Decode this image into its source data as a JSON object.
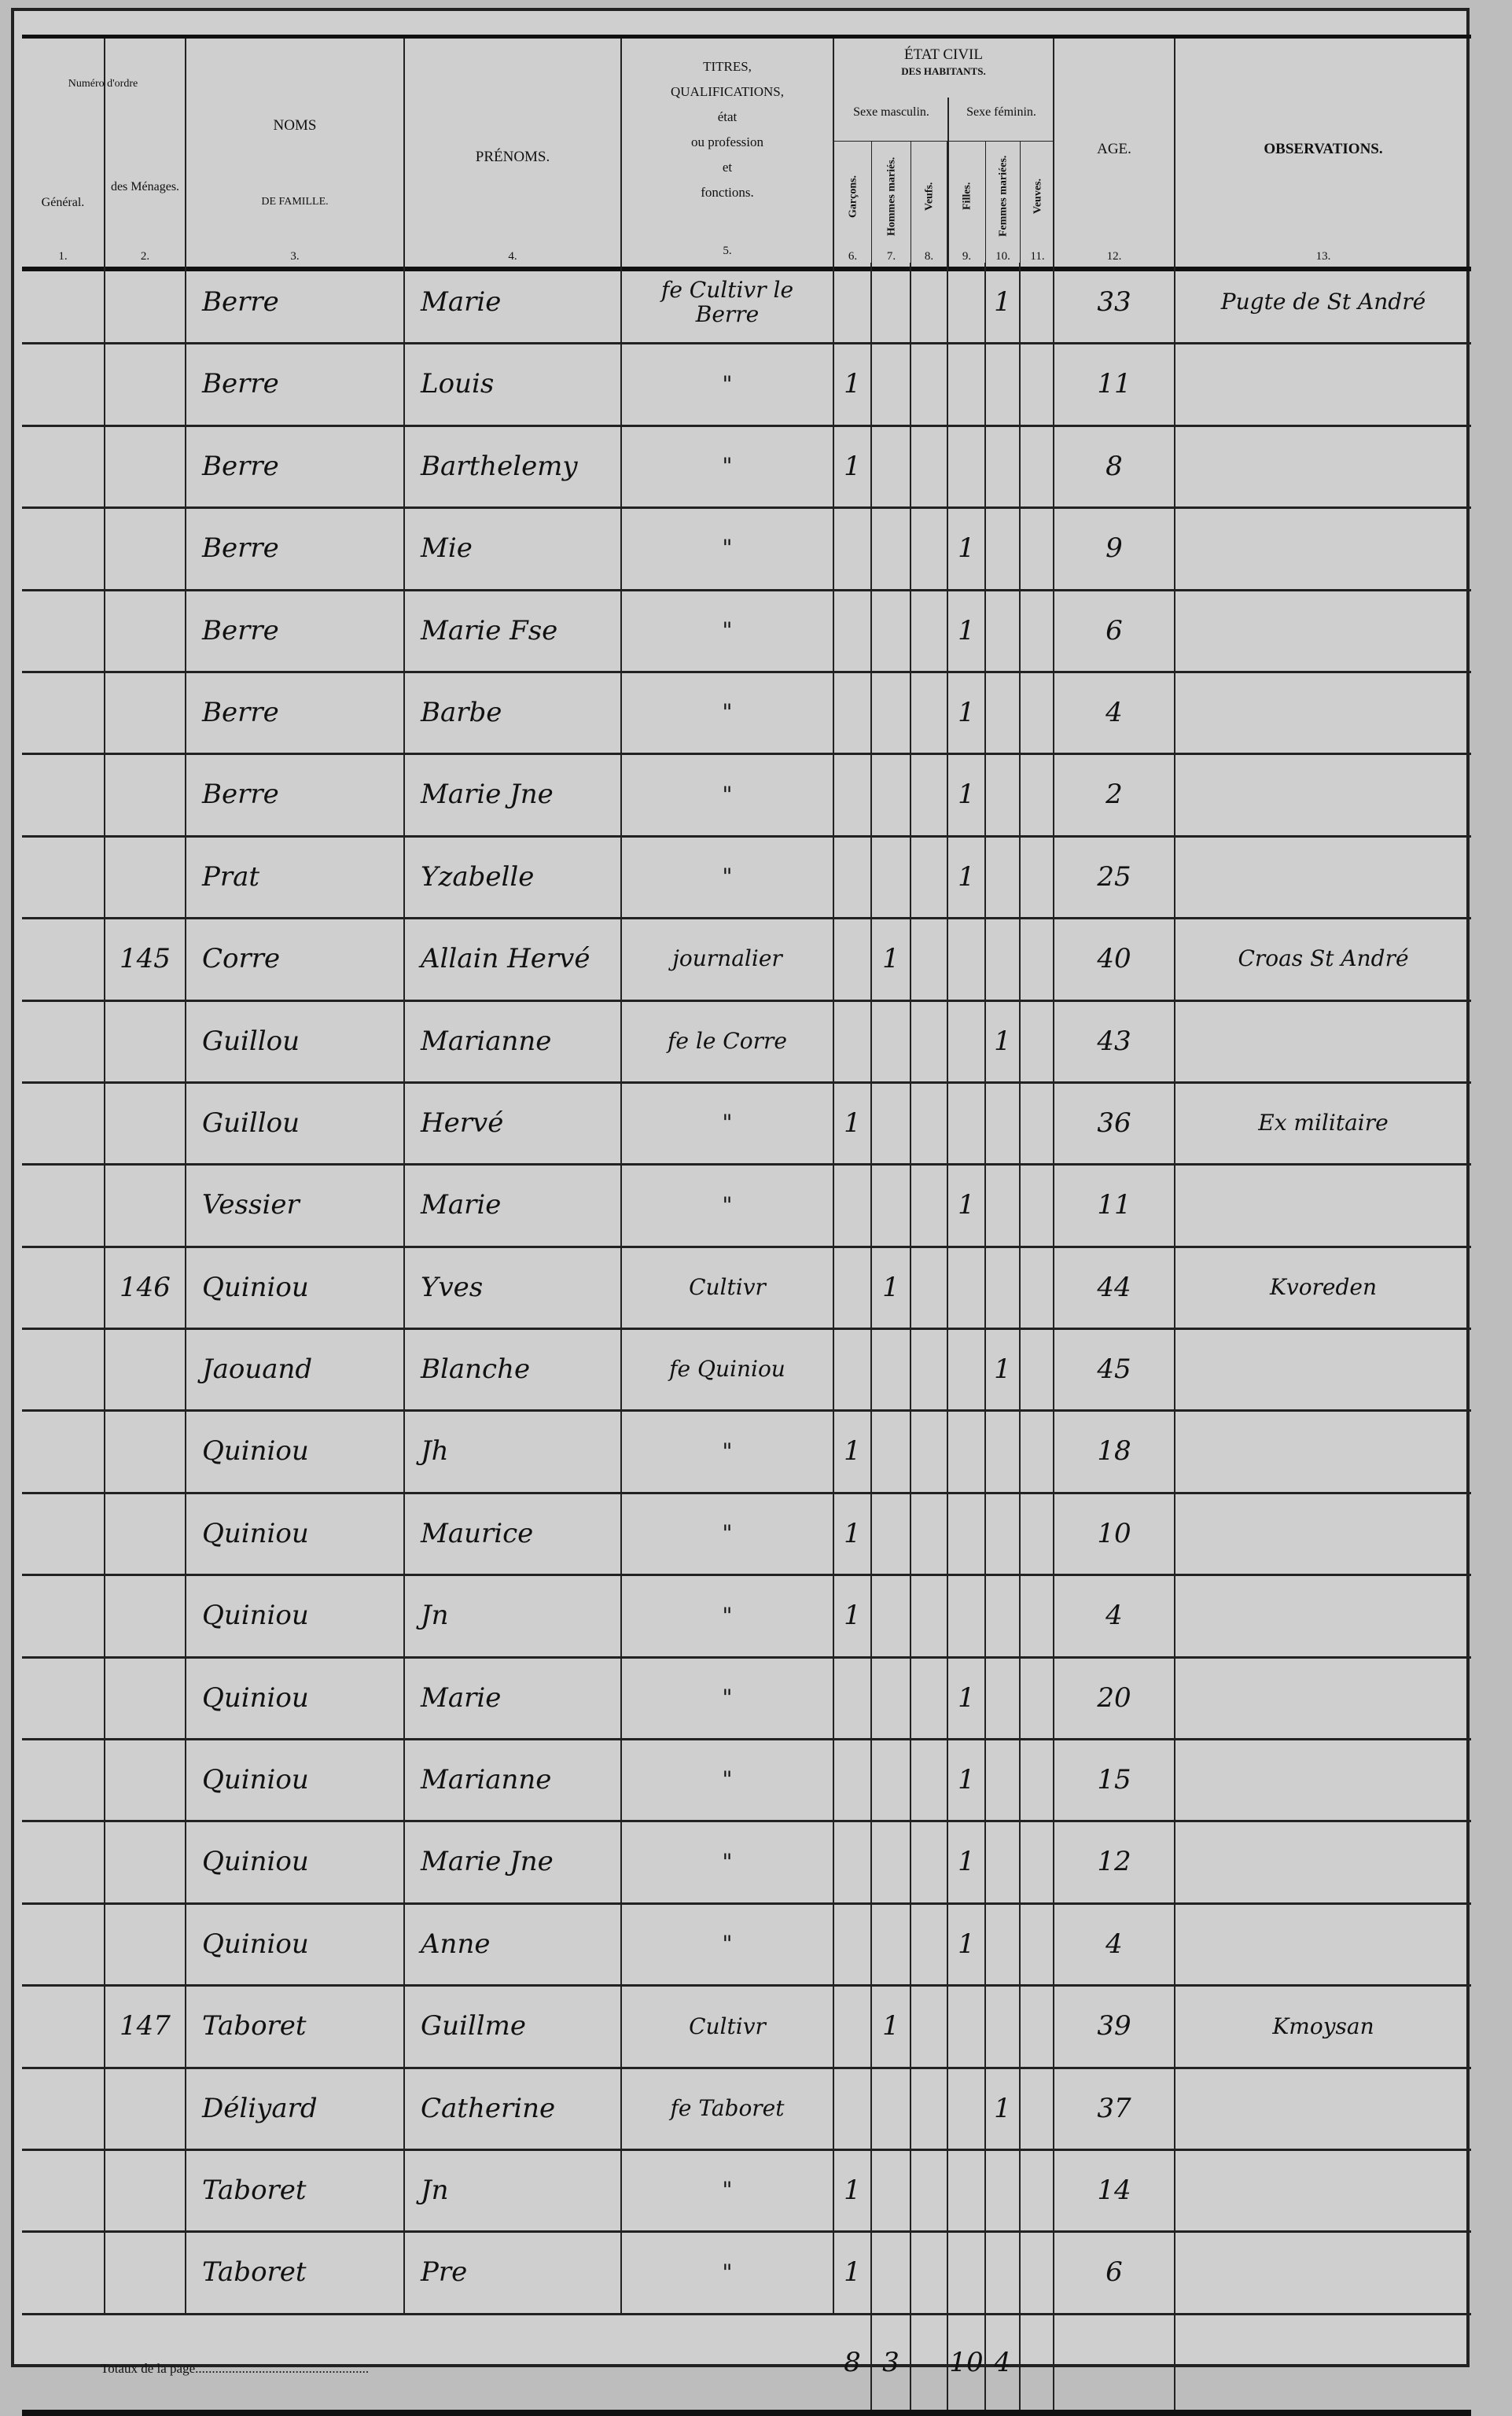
{
  "header": {
    "col1_group": "Numéro d'ordre",
    "col1": "Général.",
    "col2": "des Ménages.",
    "col3a": "NOMS",
    "col3b": "DE FAMILLE.",
    "col4": "PRÉNOMS.",
    "col5": [
      "TITRES,",
      "QUALIFICATIONS,",
      "état",
      "ou profession",
      "et",
      "fonctions."
    ],
    "etat_civil": "ÉTAT CIVIL",
    "etat_civil_sub": "DES HABITANTS.",
    "sexe_m": "Sexe masculin.",
    "sexe_f": "Sexe féminin.",
    "col6": "Garçons.",
    "col7": "Hommes mariés.",
    "col8": "Veufs.",
    "col9": "Filles.",
    "col10": "Femmes mariées.",
    "col11": "Veuves.",
    "col12": "AGE.",
    "col13": "OBSERVATIONS.",
    "numbers": [
      "1.",
      "2.",
      "3.",
      "4.",
      "5.",
      "6.",
      "7.",
      "8.",
      "9.",
      "10.",
      "11.",
      "12.",
      "13."
    ]
  },
  "rows": [
    {
      "men": "",
      "nom": "Berre",
      "prenom": "Marie",
      "titre": "fe Cultivr le Berre",
      "col": 10,
      "age": "33",
      "obs": "Pugte de St André"
    },
    {
      "men": "",
      "nom": "Berre",
      "prenom": "Louis",
      "titre": "\"",
      "col": 6,
      "age": "11",
      "obs": ""
    },
    {
      "men": "",
      "nom": "Berre",
      "prenom": "Barthelemy",
      "titre": "\"",
      "col": 6,
      "age": "8",
      "obs": ""
    },
    {
      "men": "",
      "nom": "Berre",
      "prenom": "Mie",
      "titre": "\"",
      "col": 9,
      "age": "9",
      "obs": ""
    },
    {
      "men": "",
      "nom": "Berre",
      "prenom": "Marie Fse",
      "titre": "\"",
      "col": 9,
      "age": "6",
      "obs": ""
    },
    {
      "men": "",
      "nom": "Berre",
      "prenom": "Barbe",
      "titre": "\"",
      "col": 9,
      "age": "4",
      "obs": ""
    },
    {
      "men": "",
      "nom": "Berre",
      "prenom": "Marie Jne",
      "titre": "\"",
      "col": 9,
      "age": "2",
      "obs": ""
    },
    {
      "men": "",
      "nom": "Prat",
      "prenom": "Yzabelle",
      "titre": "\"",
      "col": 9,
      "age": "25",
      "obs": ""
    },
    {
      "men": "145",
      "nom": "Corre",
      "prenom": "Allain Hervé",
      "titre": "journalier",
      "col": 7,
      "age": "40",
      "obs": "Croas St André"
    },
    {
      "men": "",
      "nom": "Guillou",
      "prenom": "Marianne",
      "titre": "fe le Corre",
      "col": 10,
      "age": "43",
      "obs": ""
    },
    {
      "men": "",
      "nom": "Guillou",
      "prenom": "Hervé",
      "titre": "\"",
      "col": 6,
      "age": "36",
      "obs": "Ex militaire"
    },
    {
      "men": "",
      "nom": "Vessier",
      "prenom": "Marie",
      "titre": "\"",
      "col": 9,
      "age": "11",
      "obs": ""
    },
    {
      "men": "146",
      "nom": "Quiniou",
      "prenom": "Yves",
      "titre": "Cultivr",
      "col": 7,
      "age": "44",
      "obs": "Kvoreden"
    },
    {
      "men": "",
      "nom": "Jaouand",
      "prenom": "Blanche",
      "titre": "fe Quiniou",
      "col": 10,
      "age": "45",
      "obs": ""
    },
    {
      "men": "",
      "nom": "Quiniou",
      "prenom": "Jh",
      "titre": "\"",
      "col": 6,
      "age": "18",
      "obs": ""
    },
    {
      "men": "",
      "nom": "Quiniou",
      "prenom": "Maurice",
      "titre": "\"",
      "col": 6,
      "age": "10",
      "obs": ""
    },
    {
      "men": "",
      "nom": "Quiniou",
      "prenom": "Jn",
      "titre": "\"",
      "col": 6,
      "age": "4",
      "obs": ""
    },
    {
      "men": "",
      "nom": "Quiniou",
      "prenom": "Marie",
      "titre": "\"",
      "col": 9,
      "age": "20",
      "obs": ""
    },
    {
      "men": "",
      "nom": "Quiniou",
      "prenom": "Marianne",
      "titre": "\"",
      "col": 9,
      "age": "15",
      "obs": ""
    },
    {
      "men": "",
      "nom": "Quiniou",
      "prenom": "Marie Jne",
      "titre": "\"",
      "col": 9,
      "age": "12",
      "obs": ""
    },
    {
      "men": "",
      "nom": "Quiniou",
      "prenom": "Anne",
      "titre": "\"",
      "col": 9,
      "age": "4",
      "obs": ""
    },
    {
      "men": "147",
      "nom": "Taboret",
      "prenom": "Guillme",
      "titre": "Cultivr",
      "col": 7,
      "age": "39",
      "obs": "Kmoysan"
    },
    {
      "men": "",
      "nom": "Déliyard",
      "prenom": "Catherine",
      "titre": "fe Taboret",
      "col": 10,
      "age": "37",
      "obs": ""
    },
    {
      "men": "",
      "nom": "Taboret",
      "prenom": "Jn",
      "titre": "\"",
      "col": 6,
      "age": "14",
      "obs": ""
    },
    {
      "men": "",
      "nom": "Taboret",
      "prenom": "Pre",
      "titre": "\"",
      "col": 6,
      "age": "6",
      "obs": ""
    }
  ],
  "tally_mark": "1",
  "totals": {
    "label": "Totaux de la page....................................................",
    "col6": "8",
    "col7": "3",
    "col8": "",
    "col9": "10",
    "col10": "4",
    "col11": ""
  }
}
